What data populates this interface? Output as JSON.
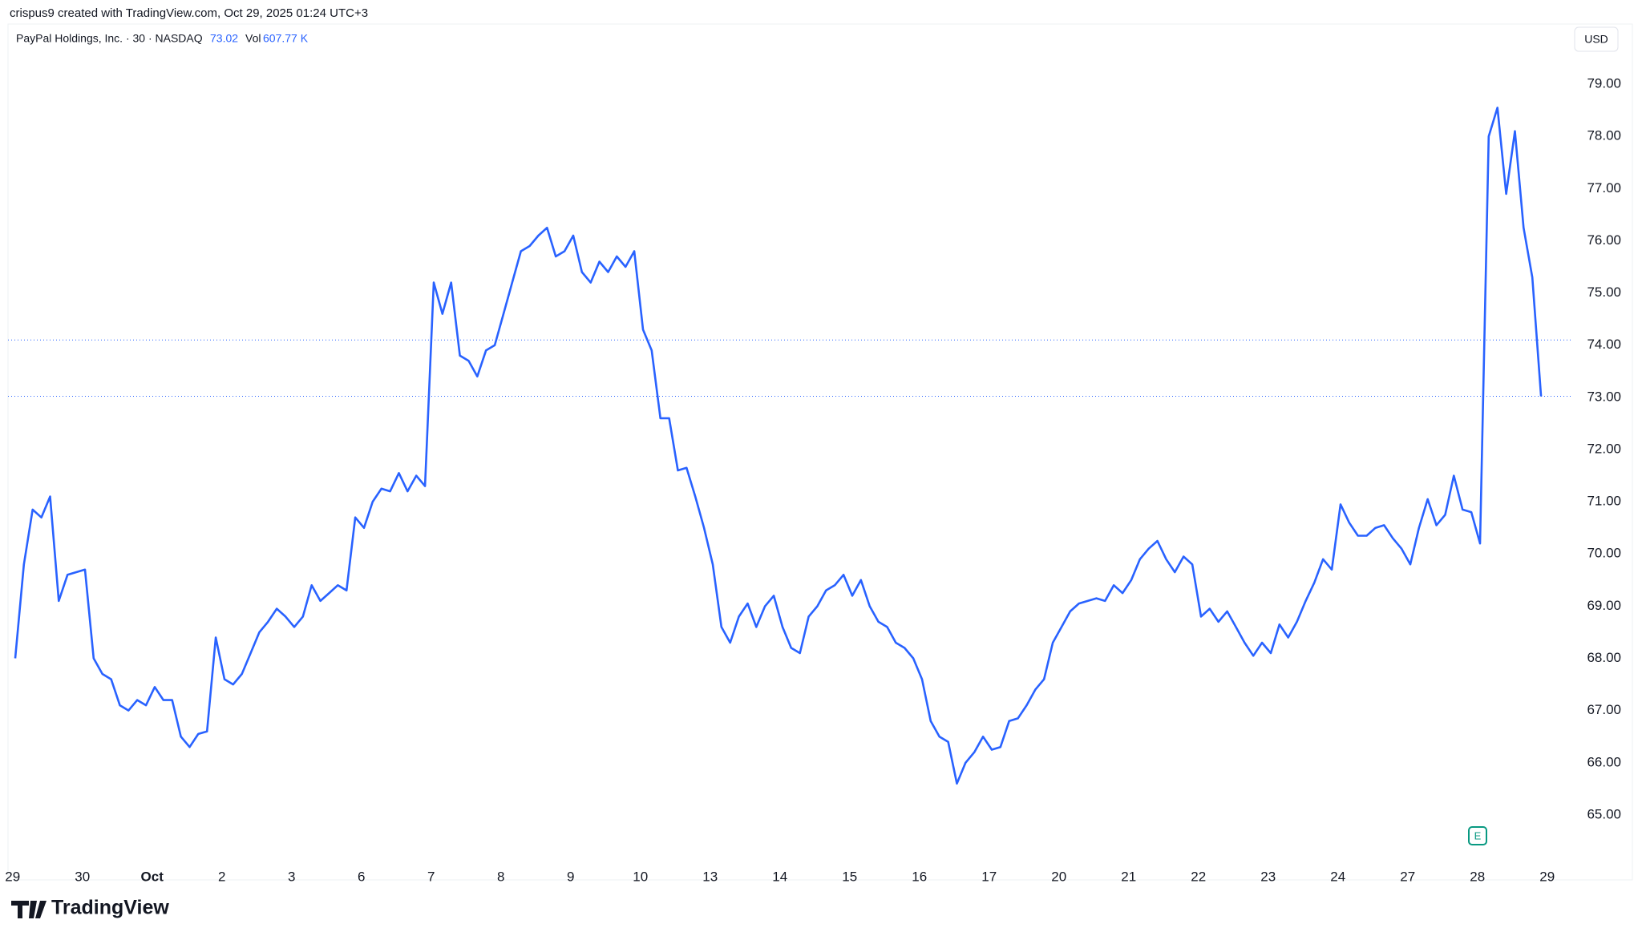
{
  "header": {
    "credit": "crispus9 created with TradingView.com, Oct 29, 2025 01:24 UTC+3",
    "symbol": "PayPal Holdings, Inc. · 30 · NASDAQ",
    "last_price": 73.02,
    "volume_label": "Vol",
    "volume": "607.77 K",
    "currency": "USD",
    "brand": "TradingView",
    "event_marker": "E"
  },
  "chart_data": {
    "type": "line",
    "color": "#2962ff",
    "reference_line": 74.1,
    "categories": [
      "29",
      "30",
      "Oct",
      "2",
      "3",
      "6",
      "7",
      "8",
      "9",
      "10",
      "13",
      "14",
      "15",
      "16",
      "17",
      "20",
      "21",
      "22",
      "23",
      "24",
      "27",
      "28",
      "29"
    ],
    "values": [
      [
        68.0,
        69.8,
        70.85,
        70.7,
        71.1,
        69.1,
        69.6,
        69.65
      ],
      [
        69.7,
        68.0,
        67.7,
        67.6,
        67.1,
        67.0,
        67.2,
        67.1
      ],
      [
        67.45,
        67.2,
        67.2,
        66.5,
        66.3,
        66.55,
        66.6,
        68.4
      ],
      [
        67.6,
        67.5,
        67.7,
        68.1,
        68.5,
        68.7,
        68.95,
        68.8
      ],
      [
        68.6,
        68.8,
        69.4,
        69.1,
        69.25,
        69.4,
        69.3,
        70.7
      ],
      [
        70.5,
        71.0,
        71.25,
        71.2,
        71.55,
        71.2,
        71.5,
        71.3
      ],
      [
        75.2,
        74.6,
        75.2,
        73.8,
        73.7,
        73.4,
        73.9,
        74.0
      ],
      [
        74.6,
        75.2,
        75.8,
        75.9,
        76.1,
        76.25,
        75.7,
        75.8
      ],
      [
        76.1,
        75.4,
        75.2,
        75.6,
        75.4,
        75.7,
        75.5,
        75.8
      ],
      [
        74.3,
        73.9,
        72.6,
        72.6,
        71.6,
        71.65,
        71.1,
        70.5
      ],
      [
        69.8,
        68.6,
        68.3,
        68.8,
        69.05,
        68.6,
        69.0,
        69.2
      ],
      [
        68.6,
        68.2,
        68.1,
        68.8,
        69.0,
        69.3,
        69.4,
        69.6
      ],
      [
        69.2,
        69.5,
        69.0,
        68.7,
        68.6,
        68.3,
        68.2,
        68.0
      ],
      [
        67.6,
        66.8,
        66.5,
        66.4,
        65.6,
        66.0,
        66.2,
        66.5
      ],
      [
        66.25,
        66.3,
        66.8,
        66.85,
        67.1,
        67.4,
        67.6,
        68.3
      ],
      [
        68.6,
        68.9,
        69.05,
        69.1,
        69.15,
        69.1,
        69.4,
        69.25
      ],
      [
        69.5,
        69.9,
        70.1,
        70.25,
        69.9,
        69.65,
        69.95,
        69.8
      ],
      [
        68.8,
        68.95,
        68.7,
        68.9,
        68.6,
        68.3,
        68.05,
        68.3
      ],
      [
        68.1,
        68.65,
        68.4,
        68.7,
        69.1,
        69.45,
        69.9,
        69.7
      ],
      [
        70.95,
        70.6,
        70.35,
        70.35,
        70.5,
        70.55,
        70.3,
        70.1
      ],
      [
        69.8,
        70.5,
        71.05,
        70.55,
        70.75,
        71.5,
        70.85,
        70.8
      ],
      [
        70.2,
        78.0,
        78.55,
        76.9,
        78.1,
        76.25,
        75.3,
        73.02
      ],
      null
    ],
    "ylim": [
      64.2,
      79.6
    ],
    "yticks": [
      {
        "value": 65,
        "label": "65.00"
      },
      {
        "value": 66,
        "label": "66.00"
      },
      {
        "value": 67,
        "label": "67.00"
      },
      {
        "value": 68,
        "label": "68.00"
      },
      {
        "value": 69,
        "label": "69.00"
      },
      {
        "value": 70,
        "label": "70.00"
      },
      {
        "value": 71,
        "label": "71.00"
      },
      {
        "value": 72,
        "label": "72.00"
      },
      {
        "value": 73,
        "label": "73.00"
      },
      {
        "value": 74,
        "label": "74.00"
      },
      {
        "value": 75,
        "label": "75.00"
      },
      {
        "value": 76,
        "label": "76.00"
      },
      {
        "value": 77,
        "label": "77.00"
      },
      {
        "value": 78,
        "label": "78.00"
      },
      {
        "value": 79,
        "label": "79.00"
      }
    ]
  }
}
